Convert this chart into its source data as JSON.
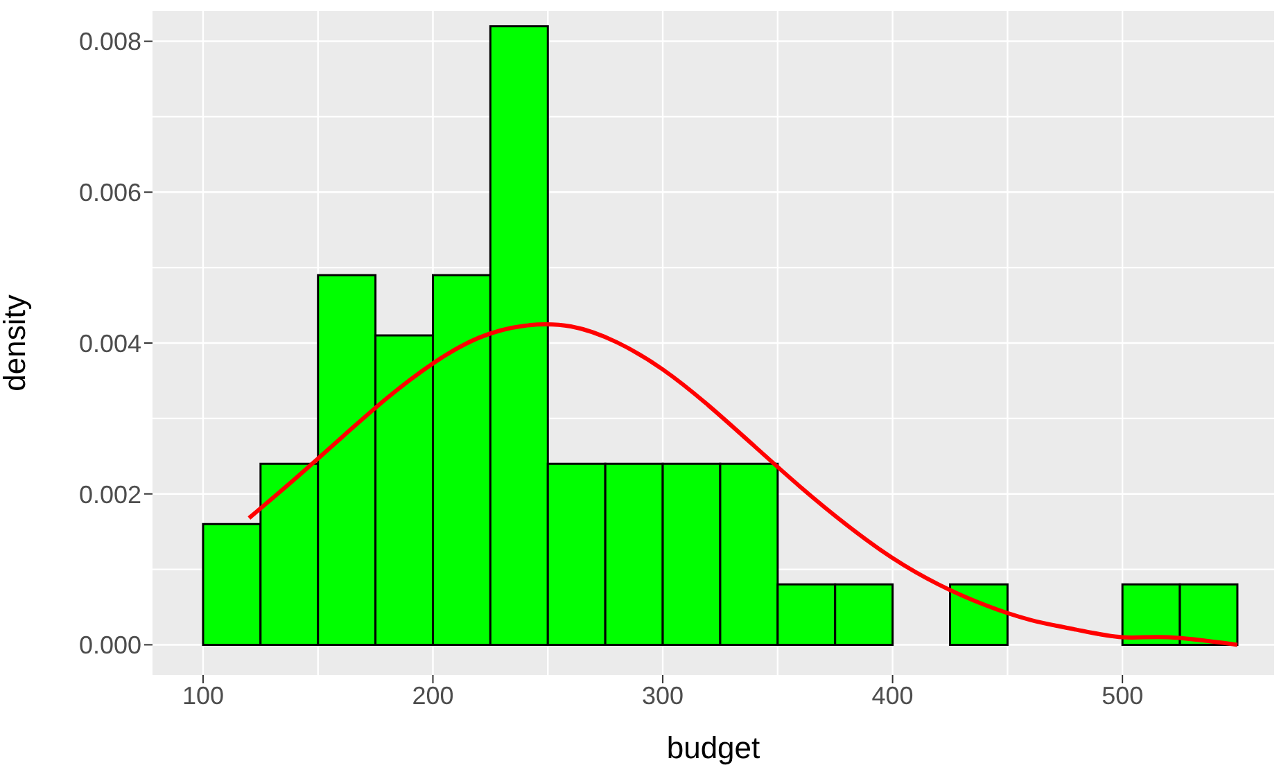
{
  "chart_data": {
    "type": "histogram",
    "xlabel": "budget",
    "ylabel": "density",
    "bins": [
      100,
      125,
      150,
      175,
      200,
      225,
      250,
      275,
      300,
      325,
      350,
      375,
      400,
      425,
      450,
      475,
      500,
      525,
      550
    ],
    "values": [
      0.0016,
      0.0024,
      0.0049,
      0.0041,
      0.0049,
      0.0082,
      0.0024,
      0.0024,
      0.0024,
      0.0024,
      0.0008,
      0.0008,
      0,
      0.0008,
      0,
      0,
      0.0008,
      0.0008
    ],
    "color": "#00ff00",
    "series": [
      {
        "type": "line",
        "color": "#ff0000",
        "x": [
          120,
          140,
          160,
          180,
          200,
          220,
          240,
          260,
          280,
          300,
          320,
          340,
          360,
          380,
          400,
          420,
          440,
          460,
          480,
          500,
          520,
          550
        ],
        "values": [
          0.00168,
          0.0022,
          0.00274,
          0.00327,
          0.00373,
          0.00407,
          0.00423,
          0.00422,
          0.00401,
          0.00365,
          0.00317,
          0.00263,
          0.00209,
          0.00159,
          0.00115,
          0.0008,
          0.00053,
          0.00033,
          0.0002,
          0.0001,
          0.0001,
          0
        ]
      }
    ],
    "xlim": [
      78,
      566
    ],
    "ylim": [
      -0.0004,
      0.0084
    ],
    "xticks": [
      100,
      200,
      300,
      400,
      500
    ],
    "yticks": [
      {
        "value": 0,
        "label": "0.000"
      },
      {
        "value": 0.002,
        "label": "0.002"
      },
      {
        "value": 0.004,
        "label": "0.004"
      },
      {
        "value": 0.006,
        "label": "0.006"
      },
      {
        "value": 0.008,
        "label": "0.008"
      }
    ],
    "grid": true
  }
}
